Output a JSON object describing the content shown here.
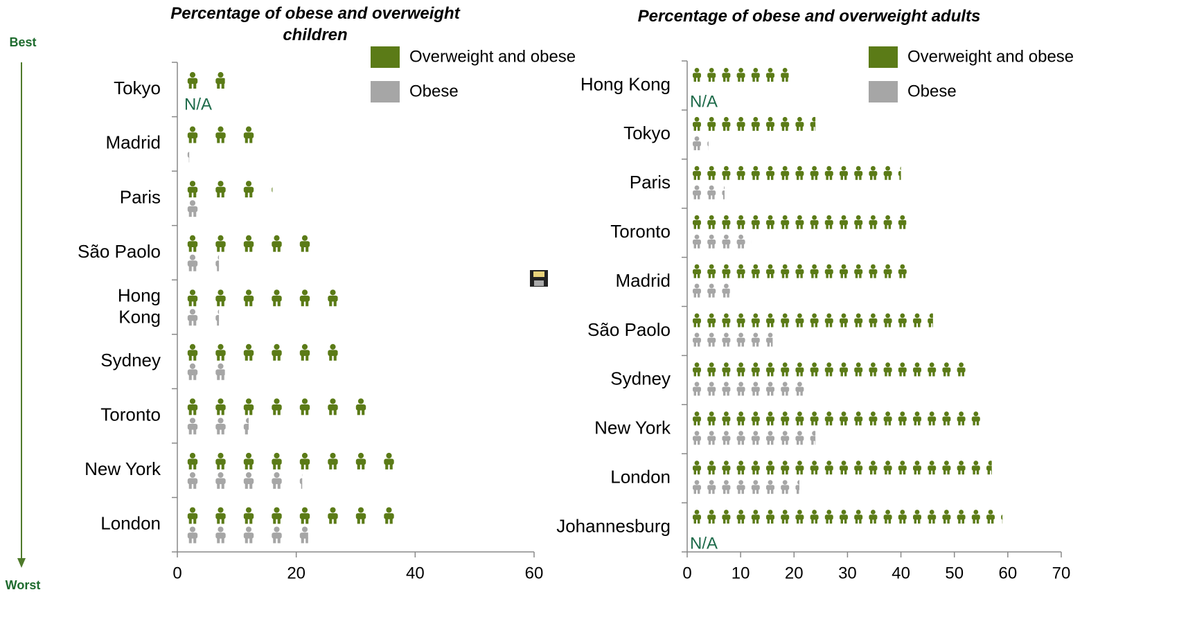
{
  "chart_data": [
    {
      "type": "pictogram",
      "title": "Percentage of obese and overweight children",
      "categories": [
        "Tokyo",
        "Madrid",
        "Paris",
        "São Paolo",
        "Hong Kong",
        "Sydney",
        "Toronto",
        "New York",
        "London"
      ],
      "series": [
        {
          "name": "Overweight and obese",
          "color": "#5b7b17",
          "values": [
            8,
            13,
            16,
            25,
            27,
            27,
            32,
            39,
            37
          ]
        },
        {
          "name": "Obese",
          "color": "#a6a6a6",
          "values": [
            null,
            2,
            4,
            7,
            7,
            8,
            12,
            21,
            22
          ],
          "value_labels": [
            "N/A",
            null,
            null,
            null,
            null,
            null,
            null,
            null,
            null
          ]
        }
      ],
      "xlim": [
        0,
        60
      ],
      "xticks": [
        0,
        20,
        40,
        60
      ],
      "legend": "upper right"
    },
    {
      "type": "pictogram",
      "title": "Percentage of obese and overweight adults",
      "categories": [
        "Hong Kong",
        "Tokyo",
        "Paris",
        "Toronto",
        "Madrid",
        "São Paolo",
        "Sydney",
        "New York",
        "London",
        "Johannesburg"
      ],
      "series": [
        {
          "name": "Overweight and obese",
          "color": "#5b7b17",
          "values": [
            19,
            24,
            40,
            41,
            42,
            46,
            53,
            56,
            57,
            59
          ]
        },
        {
          "name": "Obese",
          "color": "#a6a6a6",
          "values": [
            null,
            4,
            7,
            12,
            8,
            16,
            22,
            24,
            21,
            null
          ],
          "value_labels": [
            "N/A",
            null,
            null,
            null,
            null,
            null,
            null,
            null,
            null,
            "N/A"
          ]
        }
      ],
      "xlim": [
        0,
        70
      ],
      "xticks": [
        0,
        10,
        20,
        30,
        40,
        50,
        60,
        70
      ],
      "legend": "upper right"
    }
  ],
  "side_labels": {
    "top": "Best",
    "bottom": "Worst"
  }
}
